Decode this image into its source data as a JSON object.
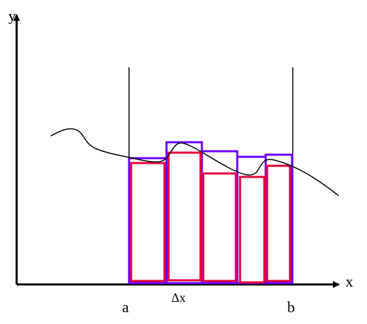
{
  "axes": {
    "y_label": "y",
    "x_label": "x"
  },
  "interval": {
    "start": "a",
    "end": "b",
    "width": "Δx"
  }
}
